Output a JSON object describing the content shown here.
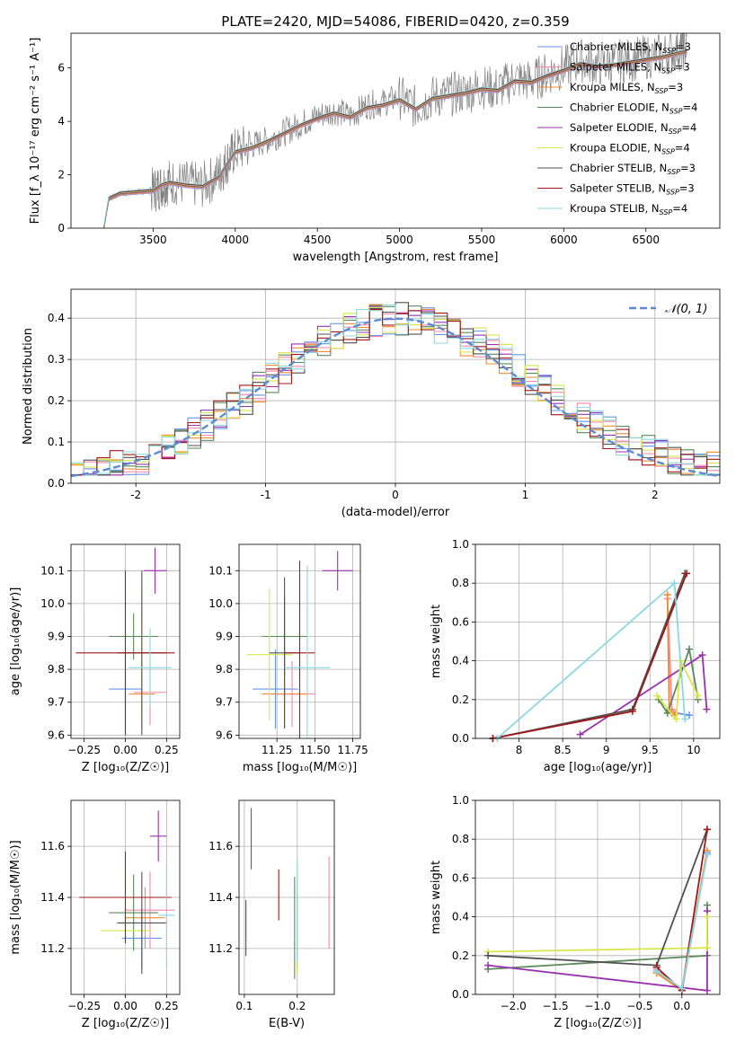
{
  "title": "PLATE=2420, MJD=54086, FIBERID=0420, z=0.359",
  "legend_spec": [
    {
      "label": "Chabrier MILES, N",
      "sub": "SSP",
      "tail": "=3",
      "color": "#6495ed"
    },
    {
      "label": "Salpeter MILES, N",
      "sub": "SSP",
      "tail": "=3",
      "color": "#ff85a9"
    },
    {
      "label": "Kroupa MILES, N",
      "sub": "SSP",
      "tail": "=3",
      "color": "#f28b30"
    },
    {
      "label": "Chabrier ELODIE, N",
      "sub": "SSP",
      "tail": "=4",
      "color": "#5a8a5a"
    },
    {
      "label": "Salpeter ELODIE, N",
      "sub": "SSP",
      "tail": "=4",
      "color": "#9a32b0"
    },
    {
      "label": "Kroupa ELODIE, N",
      "sub": "SSP",
      "tail": "=4",
      "color": "#d8e64a"
    },
    {
      "label": "Chabrier STELIB, N",
      "sub": "SSP",
      "tail": "=3",
      "color": "#505050"
    },
    {
      "label": "Salpeter STELIB, N",
      "sub": "SSP",
      "tail": "=3",
      "color": "#a01818"
    },
    {
      "label": "Kroupa STELIB, N",
      "sub": "SSP",
      "tail": "=4",
      "color": "#8ad8e0"
    }
  ],
  "legend_hist": "𝒩(0, 1)",
  "chart_data": [
    {
      "id": "spectrum",
      "type": "line",
      "xlabel": "wavelength [Angstrom, rest frame]",
      "ylabel": "Flux [f_λ 10⁻¹⁷ erg cm⁻² s⁻¹ A⁻¹]",
      "xlim": [
        3000,
        6950
      ],
      "ylim": [
        0,
        7.3
      ],
      "xticks": [
        3500,
        4000,
        4500,
        5000,
        5500,
        6000,
        6500
      ],
      "yticks": [
        0,
        2,
        4,
        6
      ],
      "data_series": {
        "name": "data",
        "color": "#808080",
        "x": [
          3200,
          3230,
          3300,
          3400,
          3500,
          3550,
          3600,
          3700,
          3800,
          3900,
          3950,
          4000,
          4100,
          4200,
          4300,
          4400,
          4500,
          4600,
          4700,
          4800,
          4900,
          5000,
          5100,
          5200,
          5300,
          5400,
          5500,
          5600,
          5700,
          5800,
          5900,
          6000,
          6100,
          6200,
          6300,
          6400,
          6500,
          6600,
          6700,
          6750
        ],
        "y": [
          0,
          1.1,
          1.3,
          1.35,
          1.4,
          1.6,
          1.75,
          1.65,
          1.6,
          2.0,
          2.5,
          2.9,
          3.1,
          3.3,
          3.6,
          3.9,
          4.2,
          4.4,
          4.2,
          4.6,
          4.7,
          4.9,
          4.5,
          4.9,
          5.0,
          5.1,
          5.3,
          5.2,
          5.6,
          5.5,
          5.8,
          6.0,
          6.3,
          6.1,
          6.2,
          6.3,
          6.4,
          6.5,
          6.7,
          6.8
        ]
      },
      "model_y": [
        0,
        1.1,
        1.3,
        1.35,
        1.4,
        1.6,
        1.7,
        1.6,
        1.55,
        1.9,
        2.4,
        2.85,
        3.0,
        3.25,
        3.55,
        3.85,
        4.1,
        4.3,
        4.15,
        4.5,
        4.6,
        4.8,
        4.45,
        4.85,
        4.95,
        5.05,
        5.2,
        5.15,
        5.5,
        5.45,
        5.7,
        5.9,
        6.15,
        6.05,
        6.1,
        6.2,
        6.3,
        6.4,
        6.55,
        6.6
      ]
    },
    {
      "id": "residuals",
      "type": "line",
      "xlabel": "(data-model)/error",
      "ylabel": "Normed distribution",
      "xlim": [
        -2.5,
        2.5
      ],
      "ylim": [
        0,
        0.47
      ],
      "xticks": [
        -2,
        -1,
        0,
        1,
        2
      ],
      "yticks": [
        0.0,
        0.1,
        0.2,
        0.3,
        0.4
      ],
      "gaussian": {
        "mu": 0,
        "sigma": 1
      },
      "bin_width": 0.1,
      "hist_base": [
        0.04,
        0.04,
        0.05,
        0.05,
        0.05,
        0.06,
        0.06,
        0.07,
        0.08,
        0.09,
        0.1,
        0.11,
        0.13,
        0.14,
        0.16,
        0.18,
        0.19,
        0.2,
        0.22,
        0.24,
        0.26,
        0.28,
        0.3,
        0.31,
        0.33,
        0.35,
        0.36,
        0.37,
        0.38,
        0.38,
        0.37,
        0.36,
        0.38,
        0.39,
        0.4,
        0.38,
        0.36,
        0.35,
        0.33,
        0.32,
        0.31,
        0.3,
        0.28,
        0.26,
        0.25,
        0.24,
        0.22,
        0.21,
        0.19,
        0.17,
        0.16,
        0.14,
        0.13,
        0.12,
        0.11,
        0.1,
        0.09,
        0.08,
        0.07,
        0.06,
        0.05,
        0.05,
        0.05,
        0.05,
        0.04,
        0.04,
        0.04,
        0.04,
        0.04,
        0.04,
        0.04,
        0.04,
        0.04,
        0.04,
        0.04,
        0.04,
        0.04,
        0.04,
        0.04,
        0.04,
        0.04,
        0.04,
        0.04,
        0.04,
        0.04,
        0.04,
        0.04,
        0.04,
        0.04,
        0.04,
        0.04,
        0.04,
        0.04,
        0.04,
        0.04,
        0.04,
        0.04,
        0.04,
        0.04,
        0.04
      ]
    },
    {
      "id": "age-vs-Z",
      "type": "scatter",
      "xlabel": "Z [log₁₀(Z/Z☉)]",
      "ylabel": "age  [log₁₀(age/yr)]",
      "xlim": [
        -0.33,
        0.33
      ],
      "ylim": [
        9.59,
        10.18
      ],
      "xticks": [
        -0.25,
        0.0,
        0.25
      ],
      "xticklabels": [
        "−0.25",
        "0.00",
        "0.25"
      ],
      "yticks": [
        9.6,
        9.7,
        9.8,
        9.9,
        10.0,
        10.1
      ],
      "points": [
        {
          "s": 0,
          "x": 0.0,
          "y": 9.74,
          "xe": 0.1,
          "ye": 0.12
        },
        {
          "s": 1,
          "x": 0.15,
          "y": 9.73,
          "xe": 0.1,
          "ye": 0.1
        },
        {
          "s": 2,
          "x": 0.1,
          "y": 9.725,
          "xe": 0.08,
          "ye": 0.1
        },
        {
          "s": 3,
          "x": 0.05,
          "y": 9.9,
          "xe": 0.15,
          "ye": 0.07
        },
        {
          "s": 4,
          "x": 0.18,
          "y": 10.1,
          "xe": 0.07,
          "ye": 0.07
        },
        {
          "s": 5,
          "x": 0.1,
          "y": 9.85,
          "xe": 0.15,
          "ye": 0.2
        },
        {
          "s": 6,
          "x": 0.1,
          "y": 9.85,
          "xe": 0.15,
          "ye": 0.25
        },
        {
          "s": 7,
          "x": 0.0,
          "y": 9.85,
          "xe": 0.3,
          "ye": 0.25
        },
        {
          "s": 8,
          "x": 0.15,
          "y": 9.805,
          "xe": 0.13,
          "ye": 0.12
        }
      ]
    },
    {
      "id": "age-vs-mass",
      "type": "scatter",
      "xlabel": "mass [log₁₀(M/M☉)]",
      "ylabel": "",
      "xlim": [
        11.0,
        11.8
      ],
      "ylim": [
        9.59,
        10.18
      ],
      "xticks": [
        11.25,
        11.5,
        11.75
      ],
      "xticklabels": [
        "11.25",
        "11.50",
        "11.75"
      ],
      "yticks": [
        9.6,
        9.7,
        9.8,
        9.9,
        10.0,
        10.1
      ],
      "points": [
        {
          "s": 0,
          "x": 11.24,
          "y": 9.74,
          "xe": 0.15,
          "ye": 0.12
        },
        {
          "s": 1,
          "x": 11.35,
          "y": 9.725,
          "xe": 0.15,
          "ye": 0.1
        },
        {
          "s": 2,
          "x": 11.3,
          "y": 9.725,
          "xe": 0.15,
          "ye": 0.1
        },
        {
          "s": 3,
          "x": 11.3,
          "y": 9.9,
          "xe": 0.15,
          "ye": 0.12
        },
        {
          "s": 4,
          "x": 11.65,
          "y": 10.1,
          "xe": 0.1,
          "ye": 0.06
        },
        {
          "s": 5,
          "x": 11.2,
          "y": 9.845,
          "xe": 0.15,
          "ye": 0.2
        },
        {
          "s": 6,
          "x": 11.3,
          "y": 9.85,
          "xe": 0.1,
          "ye": 0.23
        },
        {
          "s": 7,
          "x": 11.4,
          "y": 9.85,
          "xe": 0.1,
          "ye": 0.28
        },
        {
          "s": 8,
          "x": 11.45,
          "y": 9.805,
          "xe": 0.15,
          "ye": 0.31
        }
      ]
    },
    {
      "id": "mass-weight-vs-age",
      "type": "line",
      "xlabel": "age  [log₁₀(age/yr)]",
      "ylabel": "mass weight",
      "xlim": [
        7.5,
        10.3
      ],
      "ylim": [
        0,
        1.0
      ],
      "xticks": [
        8.0,
        8.5,
        9.0,
        9.5,
        10.0
      ],
      "yticks": [
        0.0,
        0.2,
        0.4,
        0.6,
        0.8,
        1.0
      ],
      "series": [
        {
          "s": 0,
          "x": [
            9.75,
            9.8,
            9.95
          ],
          "y": [
            0.13,
            0.13,
            0.12
          ]
        },
        {
          "s": 1,
          "x": [
            9.7,
            9.75,
            9.8
          ],
          "y": [
            0.72,
            0.15,
            0.13
          ]
        },
        {
          "s": 2,
          "x": [
            9.7,
            9.72,
            9.78
          ],
          "y": [
            0.74,
            0.15,
            0.12
          ]
        },
        {
          "s": 3,
          "x": [
            9.6,
            9.7,
            9.95,
            10.05
          ],
          "y": [
            0.2,
            0.13,
            0.46,
            0.2
          ]
        },
        {
          "s": 4,
          "x": [
            8.7,
            10.1,
            10.15
          ],
          "y": [
            0.02,
            0.43,
            0.15
          ]
        },
        {
          "s": 5,
          "x": [
            9.58,
            9.8,
            9.85,
            10.05
          ],
          "y": [
            0.22,
            0.1,
            0.4,
            0.22
          ]
        },
        {
          "s": 6,
          "x": [
            7.7,
            9.3,
            9.9
          ],
          "y": [
            0.0,
            0.15,
            0.85
          ]
        },
        {
          "s": 7,
          "x": [
            7.7,
            9.3,
            9.92
          ],
          "y": [
            0.0,
            0.14,
            0.85
          ]
        },
        {
          "s": 8,
          "x": [
            7.75,
            9.78,
            9.9
          ],
          "y": [
            0.0,
            0.8,
            0.1
          ]
        }
      ]
    },
    {
      "id": "mass-vs-Z",
      "type": "scatter",
      "xlabel": "Z [log₁₀(Z/Z☉)]",
      "ylabel": "mass [log₁₀(M/M☉)]",
      "xlim": [
        -0.33,
        0.33
      ],
      "ylim": [
        11.02,
        11.78
      ],
      "xticks": [
        -0.25,
        0.0,
        0.25
      ],
      "xticklabels": [
        "−0.25",
        "0.00",
        "0.25"
      ],
      "yticks": [
        11.2,
        11.4,
        11.6
      ],
      "yticklabels": [
        "11.2",
        "11.4",
        "11.6"
      ],
      "points": [
        {
          "s": 0,
          "x": 0.1,
          "y": 11.24,
          "xe": 0.12,
          "ye": 0.12
        },
        {
          "s": 1,
          "x": 0.15,
          "y": 11.35,
          "xe": 0.15,
          "ye": 0.15
        },
        {
          "s": 2,
          "x": 0.12,
          "y": 11.32,
          "xe": 0.12,
          "ye": 0.12
        },
        {
          "s": 3,
          "x": 0.05,
          "y": 11.34,
          "xe": 0.15,
          "ye": 0.15
        },
        {
          "s": 4,
          "x": 0.2,
          "y": 11.64,
          "xe": 0.05,
          "ye": 0.1
        },
        {
          "s": 5,
          "x": 0.0,
          "y": 11.27,
          "xe": 0.15,
          "ye": 0.22
        },
        {
          "s": 6,
          "x": 0.1,
          "y": 11.3,
          "xe": 0.15,
          "ye": 0.2
        },
        {
          "s": 7,
          "x": 0.0,
          "y": 11.4,
          "xe": 0.28,
          "ye": 0.18
        },
        {
          "s": 8,
          "x": 0.25,
          "y": 11.33,
          "xe": 0.05,
          "ye": 0.2
        }
      ]
    },
    {
      "id": "mass-vs-EBV",
      "type": "scatter",
      "xlabel": "E(B-V)",
      "ylabel": "",
      "xlim": [
        0.09,
        0.27
      ],
      "ylim": [
        11.02,
        11.78
      ],
      "xticks": [
        0.1,
        0.2
      ],
      "xticklabels": [
        "0.1",
        "0.2"
      ],
      "yticks": [
        11.2,
        11.4,
        11.6
      ],
      "yticklabels": [
        "11.2",
        "11.4",
        "11.6"
      ],
      "points": [
        {
          "s": 0,
          "x": 0.2,
          "y": 11.24,
          "xe": 0.0,
          "ye": 0.12
        },
        {
          "s": 1,
          "x": 0.26,
          "y": 11.38,
          "xe": 0.0,
          "ye": 0.18
        },
        {
          "s": 2,
          "x": 0.2,
          "y": 11.3,
          "xe": 0.0,
          "ye": 0.12
        },
        {
          "s": 3,
          "x": 0.195,
          "y": 11.28,
          "xe": 0.0,
          "ye": 0.2
        },
        {
          "s": 4,
          "x": 0.113,
          "y": 11.63,
          "xe": 0.0,
          "ye": 0.12
        },
        {
          "s": 5,
          "x": 0.2,
          "y": 11.3,
          "xe": 0.0,
          "ye": 0.2
        },
        {
          "s": 6,
          "x": 0.103,
          "y": 11.28,
          "xe": 0.0,
          "ye": 0.11
        },
        {
          "s": 7,
          "x": 0.165,
          "y": 11.41,
          "xe": 0.0,
          "ye": 0.1
        },
        {
          "s": 8,
          "x": 0.2,
          "y": 11.35,
          "xe": 0.0,
          "ye": 0.2
        }
      ]
    },
    {
      "id": "mass-weight-vs-Z",
      "type": "line",
      "xlabel": "Z [log₁₀(Z/Z☉)]",
      "ylabel": "mass weight",
      "xlim": [
        -2.45,
        0.45
      ],
      "ylim": [
        0,
        1.0
      ],
      "xticks": [
        -2.0,
        -1.5,
        -1.0,
        -0.5,
        0.0
      ],
      "xticklabels": [
        "−2.0",
        "−1.5",
        "−1.0",
        "−0.5",
        "0.0"
      ],
      "yticks": [
        0.0,
        0.2,
        0.4,
        0.6,
        0.8,
        1.0
      ],
      "series": [
        {
          "s": 0,
          "x": [
            -0.3,
            0.0,
            0.3
          ],
          "y": [
            0.12,
            0.02,
            0.73
          ]
        },
        {
          "s": 1,
          "x": [
            -0.3,
            0.0,
            0.3
          ],
          "y": [
            0.13,
            0.02,
            0.72
          ]
        },
        {
          "s": 2,
          "x": [
            -0.3,
            0.0,
            0.3
          ],
          "y": [
            0.11,
            0.02,
            0.74
          ]
        },
        {
          "s": 3,
          "x": [
            -2.3,
            0.3,
            0.3
          ],
          "y": [
            0.13,
            0.2,
            0.46
          ]
        },
        {
          "s": 4,
          "x": [
            -2.3,
            0.3,
            0.3
          ],
          "y": [
            0.15,
            0.02,
            0.43
          ]
        },
        {
          "s": 5,
          "x": [
            -2.3,
            0.3,
            0.3
          ],
          "y": [
            0.22,
            0.24,
            0.4
          ]
        },
        {
          "s": 6,
          "x": [
            -2.3,
            -0.3,
            0.3
          ],
          "y": [
            0.2,
            0.15,
            0.85
          ]
        },
        {
          "s": 7,
          "x": [
            -0.3,
            0.0,
            0.3
          ],
          "y": [
            0.14,
            0.02,
            0.85
          ]
        },
        {
          "s": 8,
          "x": [
            -0.3,
            0.0,
            0.3
          ],
          "y": [
            0.12,
            0.03,
            0.72
          ]
        }
      ]
    }
  ]
}
